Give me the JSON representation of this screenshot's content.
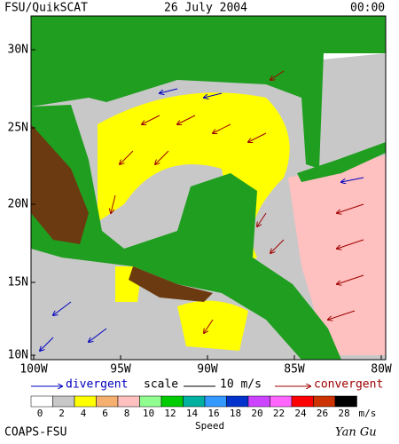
{
  "header": {
    "product": "FSU/QuikSCAT",
    "date": "26 July 2004",
    "time": "00:00"
  },
  "map": {
    "lat_labels": [
      "10N",
      "15N",
      "20N",
      "25N",
      "30N"
    ],
    "lon_labels": [
      "100W",
      "95W",
      "90W",
      "85W",
      "80W"
    ]
  },
  "legend": {
    "divergent": "divergent",
    "scale": "scale",
    "scale_value": "10 m/s",
    "convergent": "convergent"
  },
  "colorbar": {
    "labels": [
      0,
      2,
      4,
      6,
      8,
      10,
      12,
      14,
      16,
      18,
      20,
      22,
      24,
      26,
      28
    ],
    "colors": [
      "#ffffff",
      "#c8c8c8",
      "#ffff00",
      "#f5b070",
      "#ffc0c0",
      "#90ff90",
      "#00cc00",
      "#00b0a0",
      "#3399ff",
      "#0033cc",
      "#cc44ff",
      "#ff66ff",
      "#ff0000",
      "#cc3300",
      "#000000"
    ],
    "unit": "m/s",
    "title": "Speed"
  },
  "footer": {
    "credit": "COAPS-FSU",
    "author": "Yan Gu"
  }
}
